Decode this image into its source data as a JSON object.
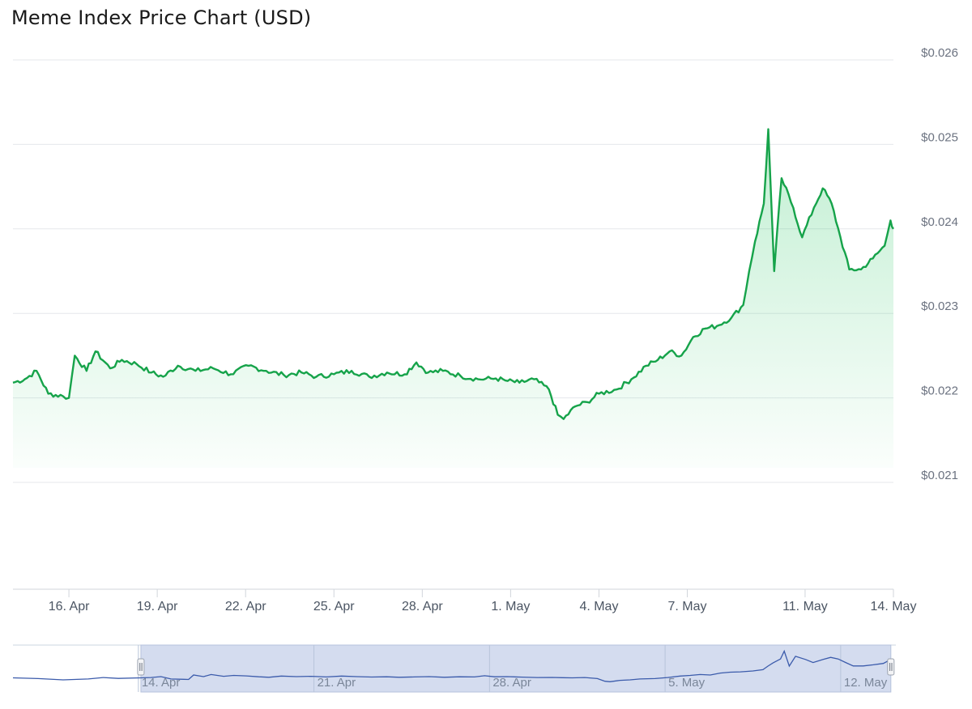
{
  "chart_data": {
    "type": "area",
    "title": "Meme Index Price Chart (USD)",
    "xlabel": "",
    "ylabel": "",
    "ylim": [
      0.021,
      0.026
    ],
    "y_ticks": [
      "$0.021",
      "$0.022",
      "$0.023",
      "$0.024",
      "$0.025",
      "$0.026"
    ],
    "y_tick_values": [
      0.021,
      0.022,
      0.023,
      0.024,
      0.025,
      0.026
    ],
    "x_ticks": [
      "16. Apr",
      "19. Apr",
      "22. Apr",
      "25. Apr",
      "28. Apr",
      "1. May",
      "4. May",
      "7. May",
      "11. May",
      "14. May"
    ],
    "x_tick_days": [
      16,
      19,
      22,
      25,
      28,
      31,
      34,
      37,
      41,
      44
    ],
    "x_range_days": [
      14.1,
      44.0
    ],
    "x_units": "day of April (31 = 1 May)",
    "series": [
      {
        "color": "#16a34a",
        "x": [
          14.1,
          14.5,
          14.9,
          15.3,
          15.8,
          16.0,
          16.2,
          16.6,
          16.9,
          17.4,
          17.8,
          18.3,
          18.8,
          19.2,
          19.7,
          20.3,
          20.9,
          21.5,
          22.1,
          22.7,
          23.3,
          23.9,
          24.4,
          25.0,
          25.6,
          26.2,
          26.8,
          27.4,
          27.8,
          28.2,
          28.7,
          29.3,
          29.9,
          30.5,
          30.9,
          31.3,
          31.8,
          32.3,
          32.6,
          32.8,
          33.2,
          33.6,
          34.0,
          34.6,
          35.1,
          35.6,
          36.0,
          36.4,
          36.8,
          37.2,
          37.6,
          38.0,
          38.5,
          38.9,
          39.1,
          39.3,
          39.6,
          39.75,
          39.95,
          40.2,
          40.6,
          40.9,
          41.3,
          41.6,
          41.9,
          42.2,
          42.5,
          42.9,
          43.3,
          43.7,
          43.9,
          44.0
        ],
        "y": [
          0.02218,
          0.02222,
          0.02232,
          0.02205,
          0.02202,
          0.022,
          0.0225,
          0.02232,
          0.02255,
          0.02235,
          0.02245,
          0.0224,
          0.0223,
          0.02225,
          0.02238,
          0.02232,
          0.02235,
          0.02228,
          0.02238,
          0.02232,
          0.02227,
          0.0223,
          0.02225,
          0.02228,
          0.02232,
          0.02225,
          0.0223,
          0.02228,
          0.02242,
          0.0223,
          0.02232,
          0.02226,
          0.02222,
          0.02223,
          0.0222,
          0.02218,
          0.02222,
          0.0221,
          0.0218,
          0.02175,
          0.0219,
          0.02195,
          0.02205,
          0.0221,
          0.02222,
          0.02238,
          0.02245,
          0.02255,
          0.0225,
          0.02272,
          0.02282,
          0.02285,
          0.02295,
          0.0231,
          0.0235,
          0.02385,
          0.0243,
          0.02518,
          0.0235,
          0.0246,
          0.02425,
          0.0239,
          0.02425,
          0.02448,
          0.0243,
          0.0239,
          0.02352,
          0.02352,
          0.02365,
          0.0238,
          0.0241,
          0.024
        ]
      }
    ],
    "navigator": {
      "x_ticks": [
        "14. Apr",
        "21. Apr",
        "28. Apr",
        "5. May",
        "12. May"
      ],
      "x_tick_days": [
        14,
        21,
        28,
        35,
        42
      ],
      "x_range_days": [
        9,
        44.2
      ],
      "selected_range_days": [
        14.1,
        44.0
      ]
    }
  }
}
